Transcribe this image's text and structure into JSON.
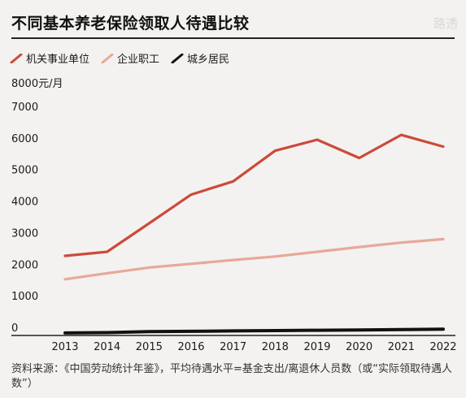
{
  "title": "不同基本养老保险领取人待遇比较",
  "watermark": "路透",
  "unit_label": "8000元/月",
  "source": "资料来源：《中国劳动统计年鉴》，平均待遇水平=基金支出/离退休人员数（或“实际领取待遇人数”）",
  "chart_data": {
    "type": "line",
    "title": "不同基本养老保险领取人待遇比较",
    "ylabel": "元/月",
    "ylim": [
      0,
      8000
    ],
    "yticks": [
      0,
      1000,
      2000,
      3000,
      4000,
      5000,
      6000,
      7000,
      8000
    ],
    "categories": [
      "2013",
      "2014",
      "2015",
      "2016",
      "2017",
      "2018",
      "2019",
      "2020",
      "2021",
      "2022"
    ],
    "grid": false,
    "legend_position": "top-left",
    "series": [
      {
        "name": "机关事业单位",
        "color": "#cc4a3a",
        "values": [
          2520,
          2650,
          3550,
          4460,
          4880,
          5850,
          6200,
          5620,
          6350,
          5980
        ]
      },
      {
        "name": "企业职工",
        "color": "#e8a898",
        "values": [
          1780,
          1970,
          2150,
          2270,
          2390,
          2500,
          2650,
          2800,
          2940,
          3050
        ]
      },
      {
        "name": "城乡居民",
        "color": "#111111",
        "values": [
          80,
          90,
          120,
          130,
          145,
          155,
          165,
          175,
          185,
          200
        ]
      }
    ]
  }
}
